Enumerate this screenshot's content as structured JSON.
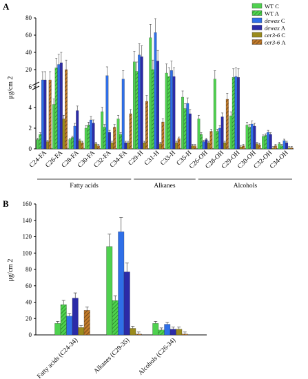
{
  "colors": {
    "WT C": "#4fd14f",
    "WT A": "#4fd14f",
    "dewax C": "#2f6fe8",
    "dewax A": "#2b2ba8",
    "cer3-6 C": "#9a8b1c",
    "cer3-6 A": "#9a5a1c"
  },
  "chart_data": [
    {
      "panel": "A",
      "type": "bar",
      "ylabel": "μg/cm 2",
      "axis_break": true,
      "ylim_lower": [
        0,
        6
      ],
      "ylim_upper": [
        0,
        80
      ],
      "yticks_lower": [
        "0",
        "2",
        "4",
        "6"
      ],
      "yticks_upper": [
        "20",
        "40",
        "60",
        "80"
      ],
      "categories": [
        "C24-FA",
        "C26-FA",
        "C28-FA",
        "C30-FA",
        "C32-FA",
        "C34-FA",
        "C29-H",
        "C31-H",
        "C33-H",
        "C35-H",
        "C26-OH",
        "C28-OH",
        "C29-OH",
        "C30-OH",
        "C32-OH",
        "C34-OH"
      ],
      "groups": [
        {
          "label": "Fatty acids",
          "from": 0,
          "to": 5
        },
        {
          "label": "Alkanes",
          "from": 6,
          "to": 9
        },
        {
          "label": "Alcohols",
          "from": 10,
          "to": 15
        }
      ],
      "series": [
        {
          "name": "WT C",
          "style": "solid",
          "values": [
            0.9,
            4.3,
            0.9,
            2.0,
            3.6,
            2.9,
            29,
            57,
            16,
            5.0,
            2.9,
            9,
            3.2,
            2.3,
            1.2,
            0.5
          ]
        },
        {
          "name": "WT A",
          "style": "hatched",
          "values": [
            1.4,
            22,
            1.1,
            2.3,
            2.1,
            1.4,
            18,
            20,
            12,
            3.9,
            1.4,
            1.7,
            11,
            2.1,
            1.3,
            0.3
          ]
        },
        {
          "name": "dewax C",
          "style": "solid",
          "values": [
            8,
            26,
            2.2,
            2.8,
            13,
            9,
            37,
            63,
            19,
            4.4,
            0.7,
            2.0,
            12,
            2.4,
            1.6,
            0.8
          ]
        },
        {
          "name": "dewax A",
          "style": "solid",
          "values": [
            8,
            28,
            3.7,
            2.5,
            1.6,
            0.6,
            35,
            30,
            12,
            3.4,
            0.9,
            3.1,
            11,
            2.2,
            1.4,
            0.6
          ]
        },
        {
          "name": "cer3-6 C",
          "style": "solid",
          "values": [
            0.7,
            2.9,
            0.8,
            0.5,
            0.6,
            0.6,
            0.6,
            0.5,
            0.6,
            0.3,
            0.6,
            0.6,
            0.2,
            0.5,
            0.1,
            0.1
          ]
        },
        {
          "name": "cer3-6 A",
          "style": "hatched",
          "values": [
            8,
            20,
            0.6,
            0.3,
            2.1,
            3.4,
            4.6,
            2.6,
            1.0,
            0.3,
            1.7,
            4.8,
            0.3,
            0.4,
            0.3,
            0.1
          ]
        }
      ]
    },
    {
      "panel": "B",
      "type": "bar",
      "ylabel": "μg/cm 2",
      "ylim": [
        0,
        160
      ],
      "yticks": [
        "0",
        "20",
        "40",
        "60",
        "80",
        "100",
        "120",
        "140",
        "160"
      ],
      "categories": [
        "Fatty acids (C24-34)",
        "Alkanes (C29-35)",
        "Alcohols (C26-34)"
      ],
      "series": [
        {
          "name": "WT C",
          "style": "solid",
          "values": [
            14,
            108,
            14
          ]
        },
        {
          "name": "WT A",
          "style": "hatched",
          "values": [
            37,
            42,
            6
          ]
        },
        {
          "name": "dewax C",
          "style": "solid",
          "values": [
            23,
            126,
            13
          ]
        },
        {
          "name": "dewax A",
          "style": "solid",
          "values": [
            45,
            77,
            7
          ]
        },
        {
          "name": "cer3-6 C",
          "style": "solid",
          "values": [
            9,
            8,
            7
          ]
        },
        {
          "name": "cer3-6 A",
          "style": "hatched",
          "values": [
            30,
            1,
            1
          ]
        }
      ]
    }
  ],
  "legend": [
    {
      "name": "WT C",
      "prefix": "WT",
      "italic": "",
      "suffix": "C"
    },
    {
      "name": "WT A",
      "prefix": "WT",
      "italic": "",
      "suffix": "A"
    },
    {
      "name": "dewax C",
      "prefix": "",
      "italic": "dewax",
      "suffix": "C"
    },
    {
      "name": "dewax A",
      "prefix": "",
      "italic": "dewax",
      "suffix": "A"
    },
    {
      "name": "cer3-6 C",
      "prefix": "",
      "italic": "cer3-6",
      "suffix": "C"
    },
    {
      "name": "cer3-6 A",
      "prefix": "",
      "italic": "cer3-6",
      "suffix": "A"
    }
  ]
}
